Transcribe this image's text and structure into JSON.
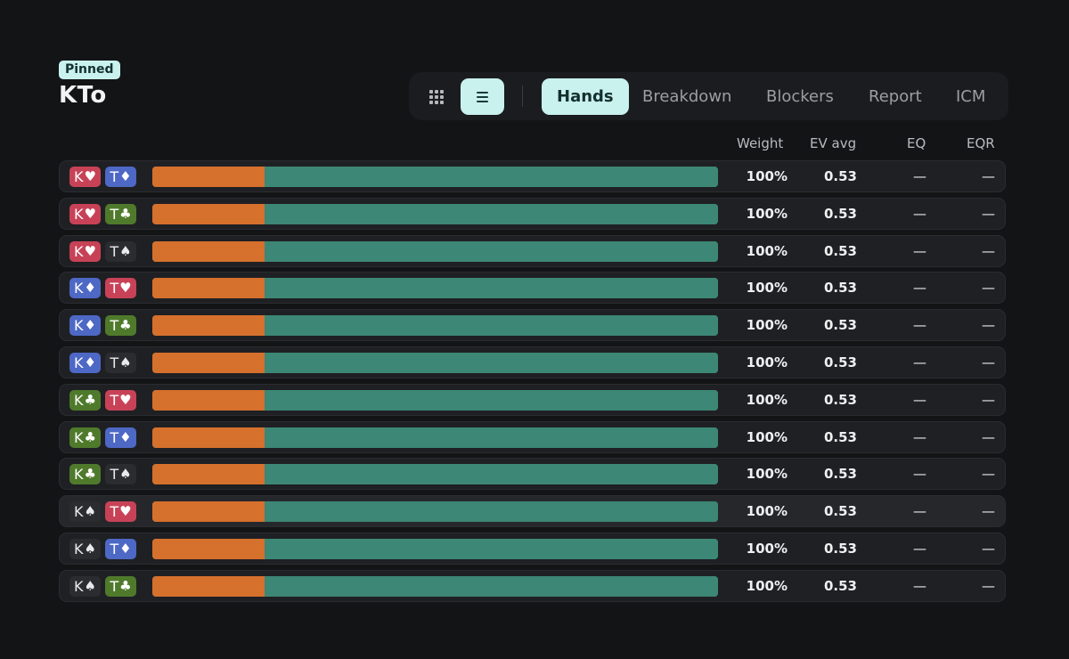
{
  "header": {
    "badge": "Pinned",
    "title": "KTo"
  },
  "toolbar": {
    "view_modes": [
      {
        "name": "grid-view",
        "icon": "grid-icon",
        "active": false
      },
      {
        "name": "list-view",
        "icon": "list-icon",
        "active": true
      }
    ],
    "tabs": [
      "Hands",
      "Breakdown",
      "Blockers",
      "Report",
      "ICM"
    ],
    "active_tab": "Hands"
  },
  "columns": {
    "weight": "Weight",
    "ev": "EV avg",
    "eq": "EQ",
    "eqr": "EQR"
  },
  "colors": {
    "accent": "#c9f1ee",
    "bar_primary": "#d6702d",
    "bar_secondary": "#3c8775",
    "hearts": "#c84257",
    "diamonds": "#4d68c5",
    "clubs": "#4f7a2c",
    "spades": "#2a2c30"
  },
  "rows": [
    {
      "cards": [
        {
          "rank": "K",
          "suit": "h"
        },
        {
          "rank": "T",
          "suit": "d"
        }
      ],
      "split": 0.198,
      "weight": "100%",
      "ev": "0.53",
      "eq": "—",
      "eqr": "—"
    },
    {
      "cards": [
        {
          "rank": "K",
          "suit": "h"
        },
        {
          "rank": "T",
          "suit": "c"
        }
      ],
      "split": 0.198,
      "weight": "100%",
      "ev": "0.53",
      "eq": "—",
      "eqr": "—"
    },
    {
      "cards": [
        {
          "rank": "K",
          "suit": "h"
        },
        {
          "rank": "T",
          "suit": "s"
        }
      ],
      "split": 0.198,
      "weight": "100%",
      "ev": "0.53",
      "eq": "—",
      "eqr": "—"
    },
    {
      "cards": [
        {
          "rank": "K",
          "suit": "d"
        },
        {
          "rank": "T",
          "suit": "h"
        }
      ],
      "split": 0.198,
      "weight": "100%",
      "ev": "0.53",
      "eq": "—",
      "eqr": "—"
    },
    {
      "cards": [
        {
          "rank": "K",
          "suit": "d"
        },
        {
          "rank": "T",
          "suit": "c"
        }
      ],
      "split": 0.198,
      "weight": "100%",
      "ev": "0.53",
      "eq": "—",
      "eqr": "—"
    },
    {
      "cards": [
        {
          "rank": "K",
          "suit": "d"
        },
        {
          "rank": "T",
          "suit": "s"
        }
      ],
      "split": 0.198,
      "weight": "100%",
      "ev": "0.53",
      "eq": "—",
      "eqr": "—"
    },
    {
      "cards": [
        {
          "rank": "K",
          "suit": "c"
        },
        {
          "rank": "T",
          "suit": "h"
        }
      ],
      "split": 0.198,
      "weight": "100%",
      "ev": "0.53",
      "eq": "—",
      "eqr": "—"
    },
    {
      "cards": [
        {
          "rank": "K",
          "suit": "c"
        },
        {
          "rank": "T",
          "suit": "d"
        }
      ],
      "split": 0.198,
      "weight": "100%",
      "ev": "0.53",
      "eq": "—",
      "eqr": "—"
    },
    {
      "cards": [
        {
          "rank": "K",
          "suit": "c"
        },
        {
          "rank": "T",
          "suit": "s"
        }
      ],
      "split": 0.198,
      "weight": "100%",
      "ev": "0.53",
      "eq": "—",
      "eqr": "—"
    },
    {
      "cards": [
        {
          "rank": "K",
          "suit": "s"
        },
        {
          "rank": "T",
          "suit": "h"
        }
      ],
      "split": 0.198,
      "weight": "100%",
      "ev": "0.53",
      "eq": "—",
      "eqr": "—"
    },
    {
      "cards": [
        {
          "rank": "K",
          "suit": "s"
        },
        {
          "rank": "T",
          "suit": "d"
        }
      ],
      "split": 0.198,
      "weight": "100%",
      "ev": "0.53",
      "eq": "—",
      "eqr": "—"
    },
    {
      "cards": [
        {
          "rank": "K",
          "suit": "s"
        },
        {
          "rank": "T",
          "suit": "c"
        }
      ],
      "split": 0.198,
      "weight": "100%",
      "ev": "0.53",
      "eq": "—",
      "eqr": "—"
    }
  ]
}
